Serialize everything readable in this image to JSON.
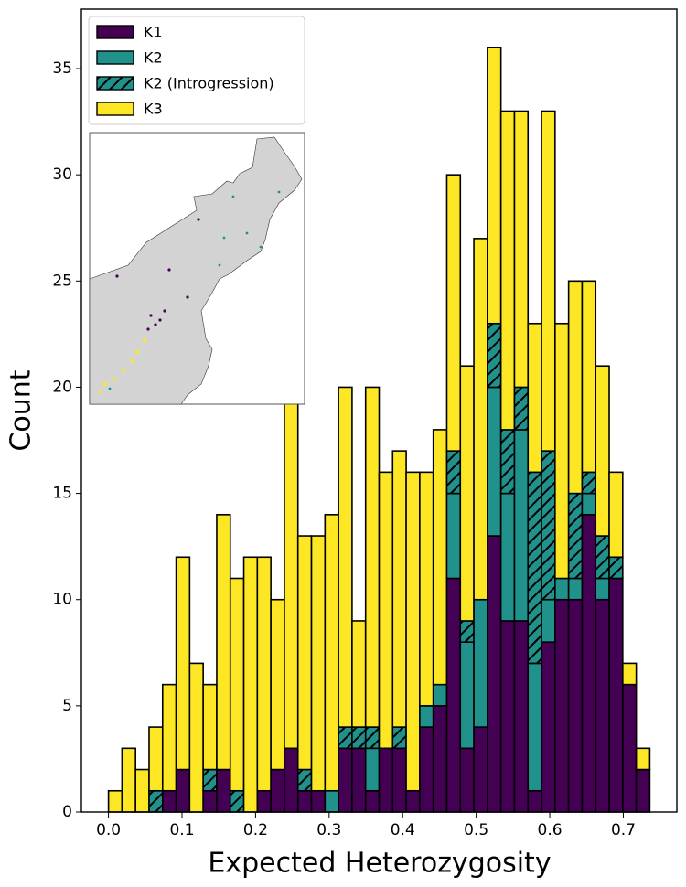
{
  "chart_data": {
    "type": "histogram",
    "xlabel": "Expected Heterozygosity",
    "ylabel": "Count",
    "bins": [
      0,
      0.0184,
      0.0368,
      0.0552,
      0.0736,
      0.092,
      0.1104,
      0.1288,
      0.1472,
      0.1656,
      0.184,
      0.2024,
      0.2208,
      0.2392,
      0.2576,
      0.276,
      0.2944,
      0.3128,
      0.3312,
      0.3496,
      0.368,
      0.3864,
      0.4048,
      0.4232,
      0.4416,
      0.46,
      0.4784,
      0.4968,
      0.5152,
      0.5336,
      0.552,
      0.5704,
      0.5888,
      0.6072,
      0.6256,
      0.644,
      0.6624,
      0.6808,
      0.6992,
      0.7176,
      0.736
    ],
    "series": [
      {
        "name": "K1",
        "color": "#440154",
        "hatch": false,
        "values": [
          0,
          0,
          0,
          0,
          1,
          2,
          0,
          1,
          2,
          0,
          0,
          1,
          2,
          3,
          1,
          1,
          0,
          3,
          3,
          1,
          3,
          3,
          1,
          4,
          5,
          11,
          3,
          4,
          13,
          9,
          9,
          1,
          8,
          10,
          10,
          14,
          10,
          11,
          6,
          2
        ]
      },
      {
        "name": "K2",
        "color": "#21918c",
        "hatch": false,
        "values": [
          0,
          0,
          0,
          0,
          0,
          0,
          0,
          0,
          0,
          0,
          0,
          0,
          0,
          0,
          0,
          0,
          1,
          0,
          0,
          2,
          0,
          0,
          0,
          1,
          1,
          4,
          5,
          6,
          7,
          6,
          9,
          6,
          2,
          1,
          1,
          1,
          1,
          0,
          0,
          0
        ]
      },
      {
        "name": "K2 (Introgression)",
        "color": "#21918c",
        "hatch": true,
        "values": [
          0,
          0,
          0,
          1,
          0,
          0,
          0,
          1,
          0,
          1,
          0,
          0,
          0,
          0,
          1,
          0,
          0,
          1,
          1,
          1,
          0,
          1,
          0,
          0,
          0,
          2,
          1,
          0,
          3,
          3,
          2,
          9,
          7,
          0,
          4,
          1,
          2,
          1,
          0,
          0
        ]
      },
      {
        "name": "K3",
        "color": "#fde725",
        "hatch": false,
        "values": [
          1,
          3,
          2,
          3,
          5,
          10,
          7,
          4,
          12,
          10,
          12,
          11,
          8,
          17,
          11,
          12,
          13,
          16,
          5,
          16,
          13,
          13,
          15,
          11,
          12,
          13,
          12,
          17,
          13,
          15,
          13,
          7,
          16,
          12,
          10,
          9,
          8,
          4,
          1,
          1
        ]
      }
    ],
    "xlim": [
      -0.0368,
      0.7728
    ],
    "ylim": [
      0,
      37.8
    ],
    "xticks": [
      {
        "value": 0,
        "label": "0.0"
      },
      0.1,
      0.2,
      0.3,
      0.4,
      0.5,
      0.6,
      0.7
    ],
    "yticks": [
      0,
      5,
      10,
      15,
      20,
      25,
      30,
      35
    ],
    "legend": "upper left",
    "edgecolor": "#000000"
  }
}
